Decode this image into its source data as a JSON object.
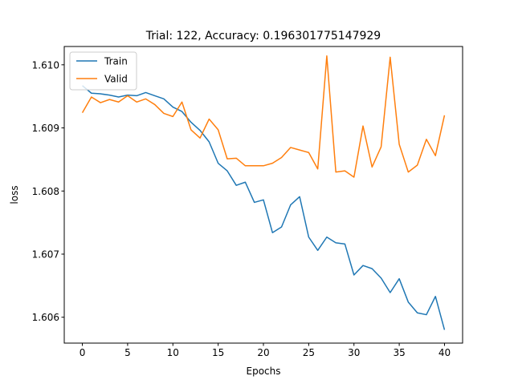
{
  "chart_data": {
    "type": "line",
    "title": "Trial: 122, Accuracy: 0.196301775147929",
    "xlabel": "Epochs",
    "ylabel": "loss",
    "xlim": [
      -2,
      42
    ],
    "ylim": [
      1.60559,
      1.61029
    ],
    "x_ticks": [
      0,
      5,
      10,
      15,
      20,
      25,
      30,
      35,
      40
    ],
    "y_ticks": [
      1.606,
      1.607,
      1.608,
      1.609,
      1.61
    ],
    "y_tick_labels": [
      "1.606",
      "1.607",
      "1.608",
      "1.609",
      "1.610"
    ],
    "grid": false,
    "legend_position": "upper-left",
    "x": [
      0,
      1,
      2,
      3,
      4,
      5,
      6,
      7,
      8,
      9,
      10,
      11,
      12,
      13,
      14,
      15,
      16,
      17,
      18,
      19,
      20,
      21,
      22,
      23,
      24,
      25,
      26,
      27,
      28,
      29,
      30,
      31,
      32,
      33,
      34,
      35,
      36,
      37,
      38,
      39,
      40
    ],
    "series": [
      {
        "name": "Train",
        "color": "#1f77b4",
        "values": [
          1.60967,
          1.60955,
          1.60954,
          1.60952,
          1.60949,
          1.60952,
          1.60951,
          1.60956,
          1.60951,
          1.60946,
          1.60933,
          1.60926,
          1.60909,
          1.60896,
          1.60878,
          1.60844,
          1.60832,
          1.60809,
          1.60814,
          1.60782,
          1.60786,
          1.60734,
          1.60743,
          1.60778,
          1.60791,
          1.60727,
          1.60706,
          1.60727,
          1.60718,
          1.60716,
          1.60667,
          1.60682,
          1.60677,
          1.60662,
          1.60639,
          1.60661,
          1.60624,
          1.60607,
          1.60604,
          1.60633,
          1.6058
        ]
      },
      {
        "name": "Valid",
        "color": "#ff7f0e",
        "values": [
          1.60924,
          1.60949,
          1.6094,
          1.60945,
          1.60941,
          1.60951,
          1.60941,
          1.60946,
          1.60937,
          1.60923,
          1.60918,
          1.60941,
          1.60897,
          1.60884,
          1.60914,
          1.60897,
          1.60851,
          1.60852,
          1.6084,
          1.6084,
          1.6084,
          1.60844,
          1.60853,
          1.60869,
          1.60865,
          1.60861,
          1.60835,
          1.61014,
          1.6083,
          1.60832,
          1.60822,
          1.60903,
          1.60838,
          1.6087,
          1.61012,
          1.60874,
          1.6083,
          1.60841,
          1.60882,
          1.60856,
          1.6092
        ]
      }
    ]
  }
}
